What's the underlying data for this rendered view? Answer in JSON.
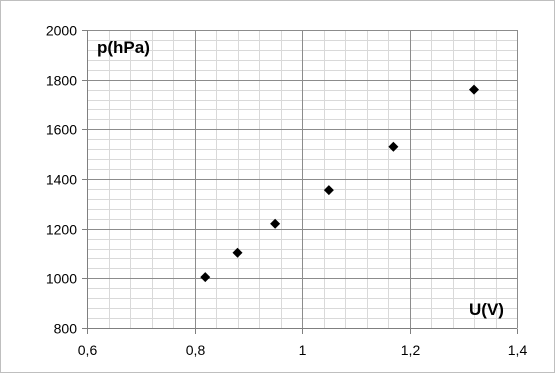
{
  "chart_data": {
    "type": "scatter",
    "title": "",
    "xlabel": "U(V)",
    "ylabel": "p(hPa)",
    "xlim": [
      0.6,
      1.4
    ],
    "ylim": [
      800,
      2000
    ],
    "x_major_ticks": [
      0.6,
      0.8,
      1.0,
      1.2,
      1.4
    ],
    "x_tick_labels": [
      "0,6",
      "0,8",
      "1",
      "1,2",
      "1,4"
    ],
    "x_minor_step": 0.04,
    "y_major_ticks": [
      800,
      1000,
      1200,
      1400,
      1600,
      1800,
      2000
    ],
    "y_tick_labels": [
      "800",
      "1000",
      "1200",
      "1400",
      "1600",
      "1800",
      "2000"
    ],
    "y_minor_step": 40,
    "grid": true,
    "legend": "none",
    "marker": "diamond",
    "marker_color": "#000000",
    "series": [
      {
        "x": [
          0.82,
          0.88,
          0.95,
          1.05,
          1.17,
          1.32
        ],
        "y": [
          1005,
          1103,
          1220,
          1355,
          1530,
          1760
        ]
      }
    ]
  }
}
